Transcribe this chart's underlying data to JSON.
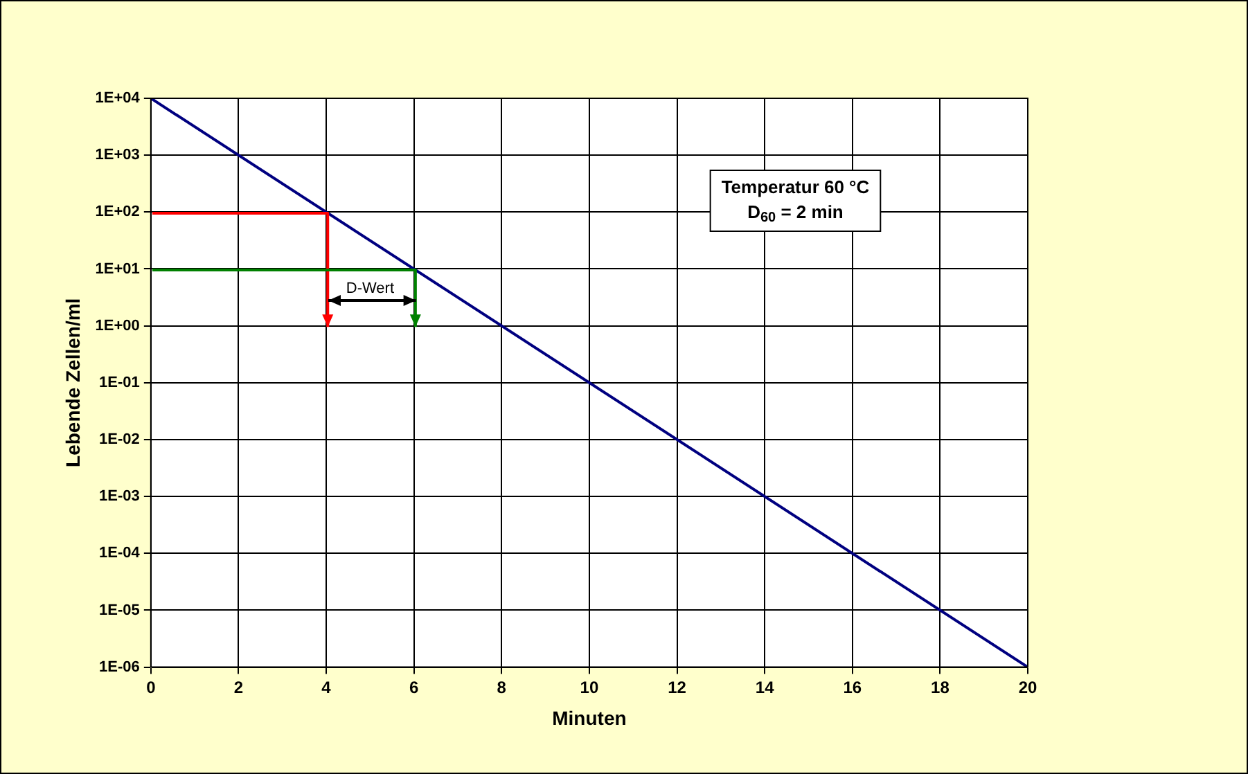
{
  "chart_data": {
    "type": "line",
    "xlabel": "Minuten",
    "ylabel": "Lebende Zellen/ml",
    "x": [
      0,
      20
    ],
    "series": [
      {
        "color": "#000080",
        "values": [
          10000,
          1e-06
        ]
      },
      {
        "color": "#ff0000",
        "x": [
          0,
          4,
          4
        ],
        "values": [
          100,
          100,
          1
        ]
      },
      {
        "color": "#008000",
        "x": [
          0,
          6,
          6
        ],
        "values": [
          10,
          10,
          1
        ]
      },
      {
        "color": "#000000",
        "x": [
          4,
          6
        ],
        "values": [
          3,
          3
        ]
      }
    ],
    "log": "y",
    "xlim": [
      0,
      20
    ],
    "xticks": [
      0,
      2,
      4,
      6,
      8,
      10,
      12,
      14,
      16,
      18,
      20
    ],
    "ylim": [
      1e-06,
      10000
    ],
    "yticks": [
      {
        "value": 1e-06,
        "label": "1E-06"
      },
      {
        "value": 1e-05,
        "label": "1E-05"
      },
      {
        "value": 0.0001,
        "label": "1E-04"
      },
      {
        "value": 0.001,
        "label": "1E-03"
      },
      {
        "value": 0.01,
        "label": "1E-02"
      },
      {
        "value": 0.1,
        "label": "1E-01"
      },
      {
        "value": 1,
        "label": "1E+00"
      },
      {
        "value": 10,
        "label": "1E+01"
      },
      {
        "value": 100,
        "label": "1E+02"
      },
      {
        "value": 1000,
        "label": "1E+03"
      },
      {
        "value": 10000,
        "label": "1E+04"
      }
    ],
    "grid": true,
    "legend": false,
    "marker": "none",
    "line_style": "solid",
    "annotations": [
      {
        "text": "D-Wert",
        "x": 5,
        "y": 3
      },
      "Temperatur 60 °C\nD$_{60}$ = 2 min"
    ]
  }
}
